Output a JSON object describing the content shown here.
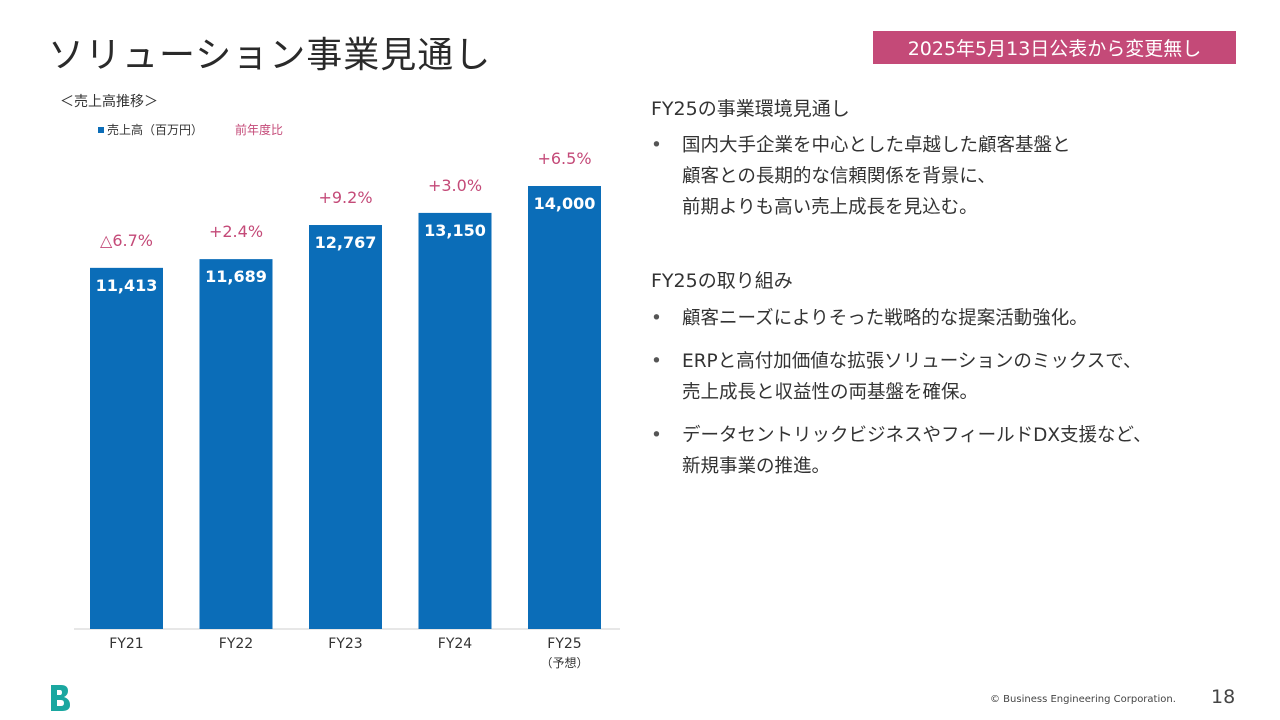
{
  "slide": {
    "title": "ソリューション事業見通し",
    "badge": "2025年5月13日公表から変更無し",
    "page_number": "18",
    "copyright": "© Business Engineering Corporation."
  },
  "chart_heading": "＜売上高推移＞",
  "legend": {
    "sales": "売上高（百万円）",
    "yoy": "前年度比"
  },
  "chart_data": {
    "type": "bar",
    "categories": [
      "FY21",
      "FY22",
      "FY23",
      "FY24",
      "FY25"
    ],
    "category_notes": [
      "",
      "",
      "",
      "",
      "（予想）"
    ],
    "series": [
      {
        "name": "売上高（百万円）",
        "values": [
          11413,
          11689,
          12767,
          13150,
          14000
        ]
      }
    ],
    "value_labels": [
      "11,413",
      "11,689",
      "12,767",
      "13,150",
      "14,000"
    ],
    "yoy_labels": [
      "△6.7%",
      "+2.4%",
      "+9.2%",
      "+3.0%",
      "+6.5%"
    ],
    "colors": {
      "bar": "#0b6db8",
      "yoy": "#c44a78"
    }
  },
  "outlook": {
    "heading": "FY25の事業環境見通し",
    "items": [
      "国内大手企業を中心とした卓越した顧客基盤と\n顧客との長期的な信頼関係を背景に、\n前期よりも高い売上成長を見込む。"
    ]
  },
  "initiatives": {
    "heading": "FY25の取り組み",
    "items": [
      "顧客ニーズによりそった戦略的な提案活動強化。",
      "ERPと高付加価値な拡張ソリューションのミックスで、\n売上成長と収益性の両基盤を確保。",
      "データセントリックビジネスやフィールドDX支援など、\n新規事業の推進。"
    ]
  },
  "colors": {
    "accent": "#c44a78",
    "bar": "#0b6db8",
    "logo": "#1aa7a0"
  }
}
